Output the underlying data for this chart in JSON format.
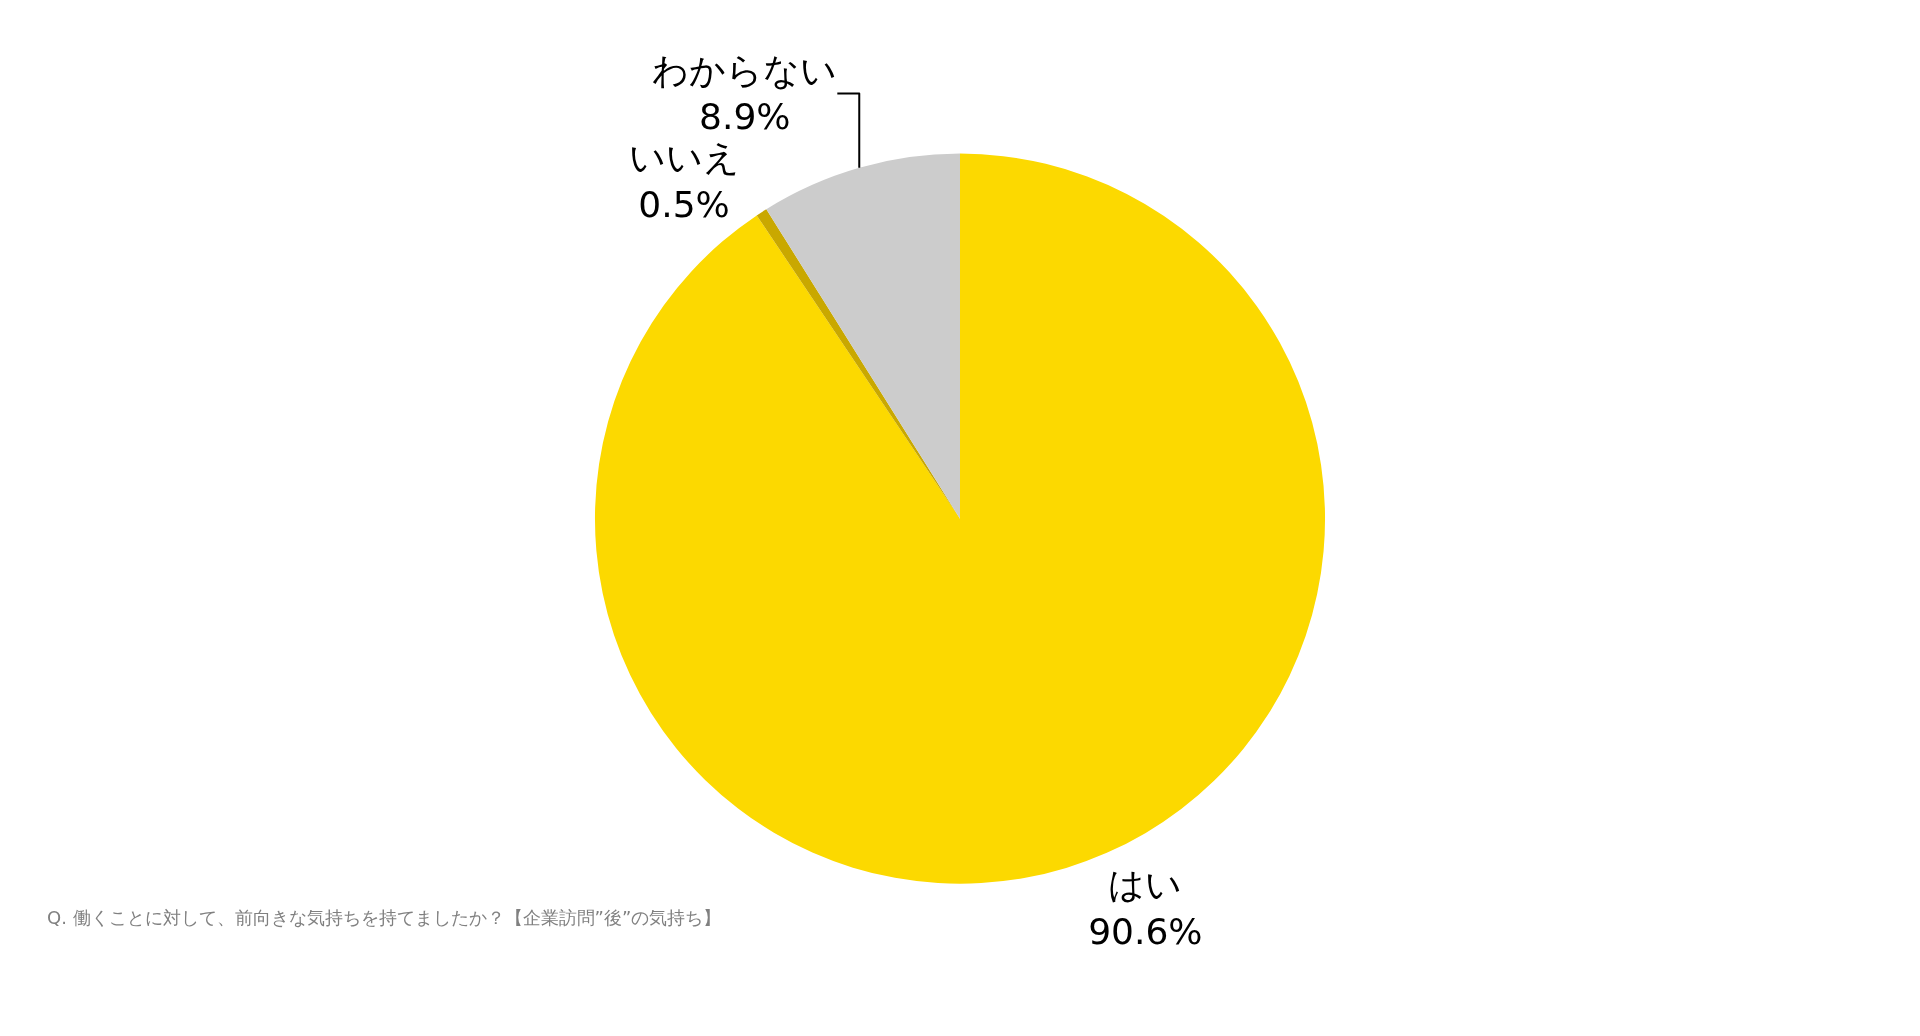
{
  "chart_data": {
    "type": "pie",
    "categories": [
      "はい",
      "いいえ",
      "わからない"
    ],
    "values": [
      90.6,
      0.5,
      8.9
    ],
    "value_labels": [
      "90.6%",
      "0.5%",
      "8.9%"
    ],
    "colors": [
      "#fcd900",
      "#c9a800",
      "#cccccc"
    ],
    "legend": false,
    "annotations": [
      "Q. 働くことに対して、前向きな気持ちを持てましたか？【企業訪問”後”の気持ち】"
    ]
  }
}
